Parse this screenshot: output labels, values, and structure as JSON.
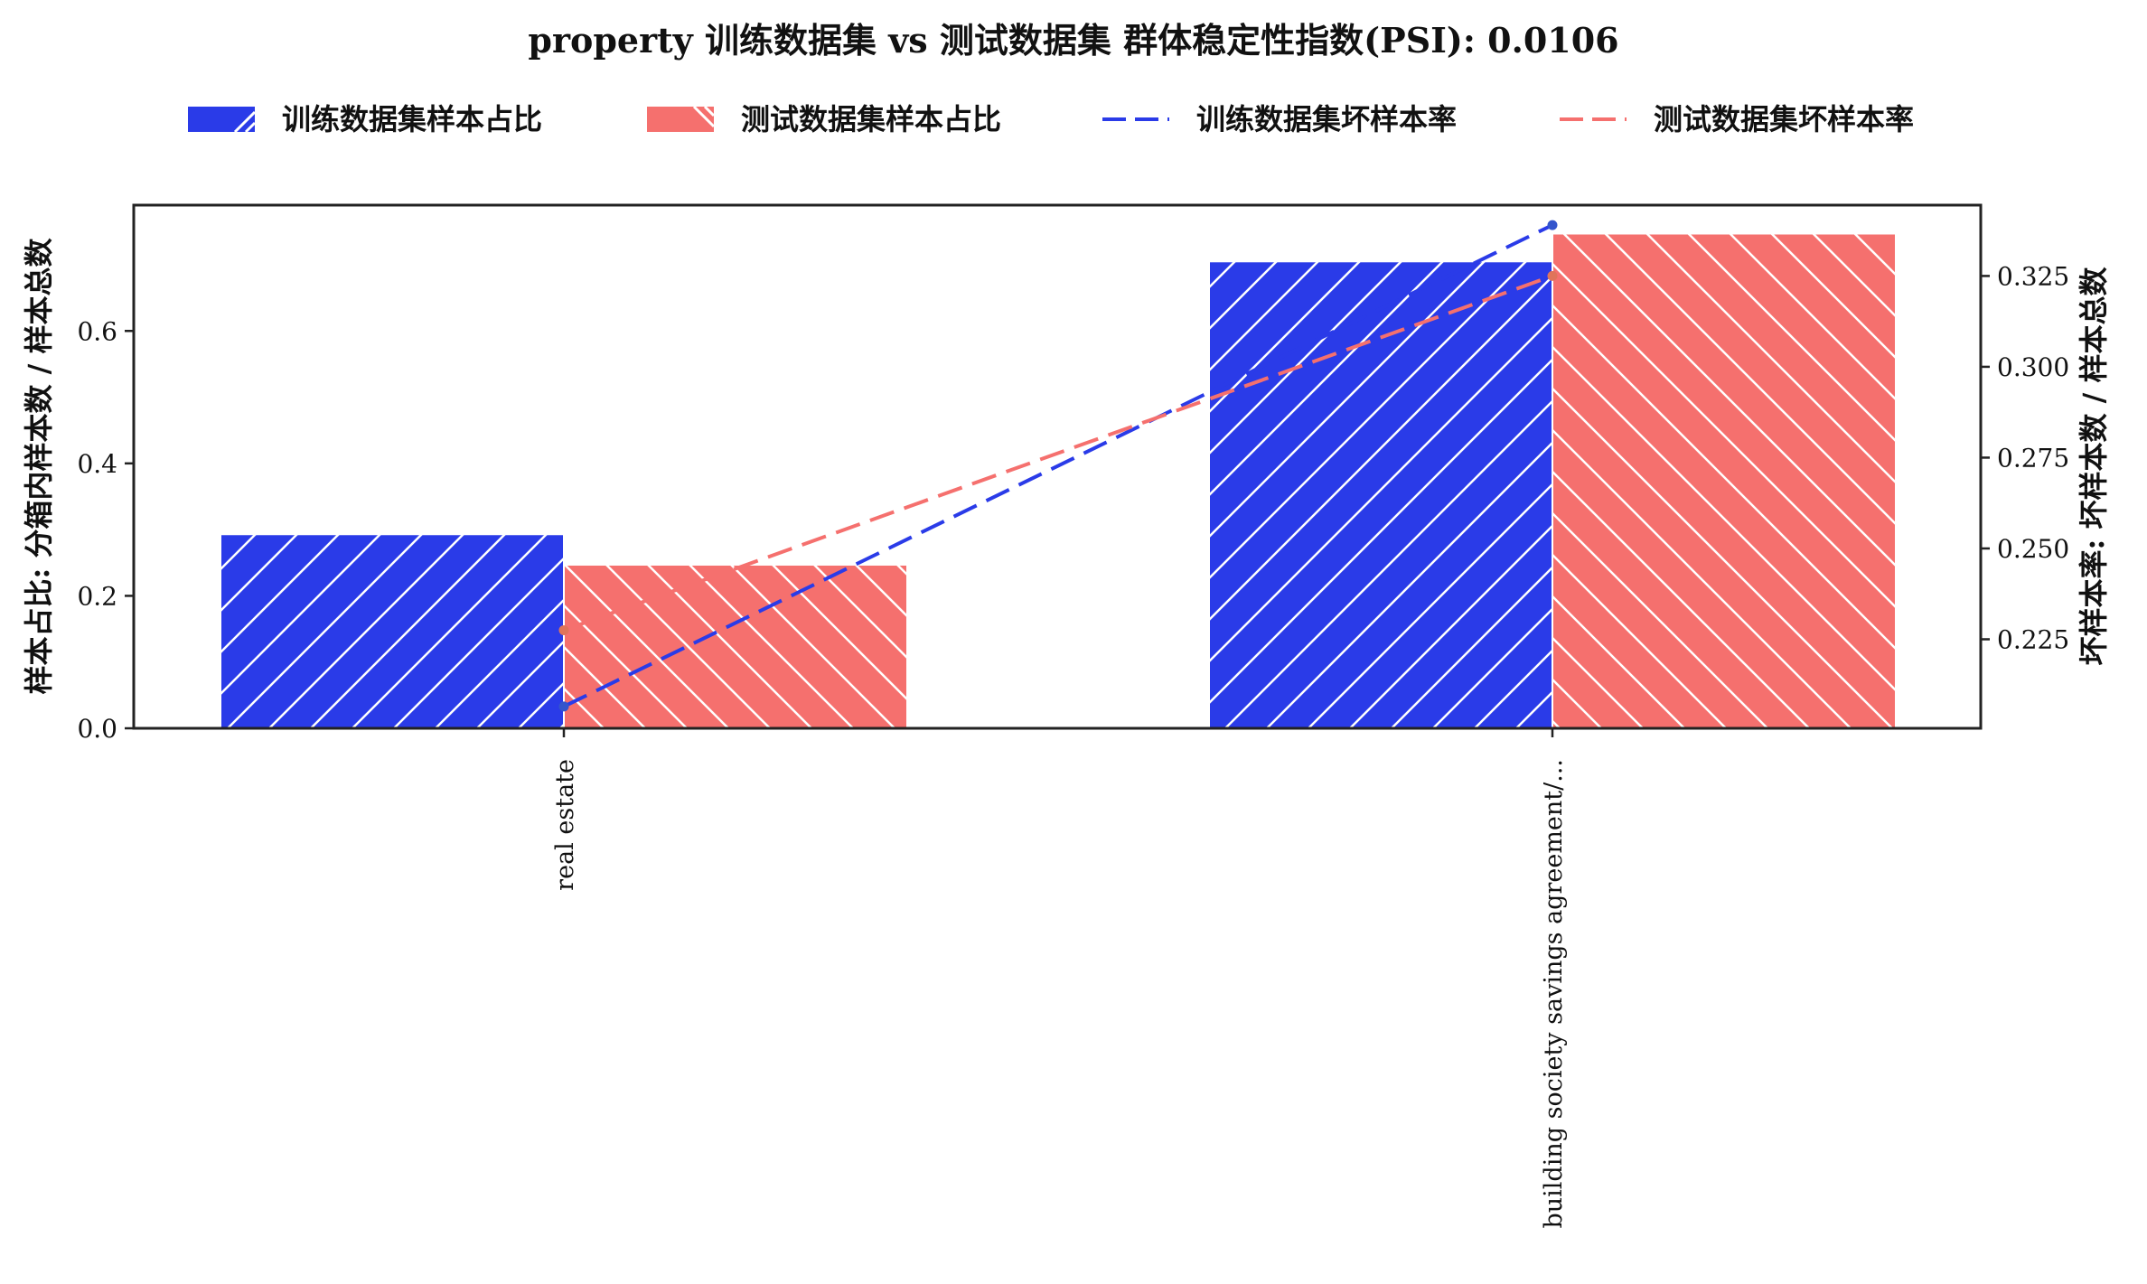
{
  "chart_data": {
    "type": "bar",
    "title": "property 训练数据集 vs 测试数据集 群体稳定性指数(PSI): 0.0106",
    "categories": [
      "real estate",
      "building society savings agreement/..."
    ],
    "series": [
      {
        "name": "训练数据集样本占比",
        "kind": "bar",
        "axis": "left",
        "hatch": "/",
        "color": "#2a3be8",
        "values": [
          0.293,
          0.705
        ]
      },
      {
        "name": "测试数据集样本占比",
        "kind": "bar",
        "axis": "left",
        "hatch": "\\",
        "color": "#f5706e",
        "values": [
          0.247,
          0.747
        ]
      },
      {
        "name": "训练数据集坏样本率",
        "kind": "line",
        "axis": "right",
        "dash": "dashed",
        "color": "#2a3be8",
        "values": [
          0.2065,
          0.339
        ]
      },
      {
        "name": "测试数据集坏样本率",
        "kind": "line",
        "axis": "right",
        "dash": "dashed",
        "color": "#f5706e",
        "values": [
          0.2275,
          0.325
        ]
      }
    ],
    "ylabel": "样本占比: 分箱内样本数 / 样本总数",
    "ylabel_right": "坏样本率: 坏样本数 / 样本总数",
    "ylim": [
      0,
      0.79
    ],
    "ylim_right": [
      0.2005,
      0.3445
    ],
    "yticks": [
      0.0,
      0.2,
      0.4,
      0.6
    ],
    "ytick_labels": [
      "0.0",
      "0.2",
      "0.4",
      "0.6"
    ],
    "yticks_right": [
      0.225,
      0.25,
      0.275,
      0.3,
      0.325
    ],
    "ytick_labels_right": [
      "0.225",
      "0.250",
      "0.275",
      "0.300",
      "0.325"
    ],
    "legend_position": "top-center",
    "grid": false
  }
}
